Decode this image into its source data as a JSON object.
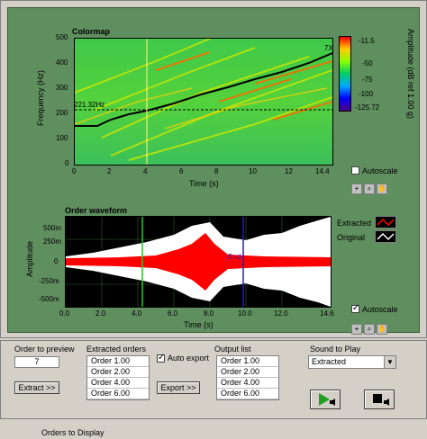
{
  "colormap": {
    "title": "Colormap",
    "ylabel": "Frequency (Hz)",
    "xlabel": "Time (s)",
    "y_ticks": [
      "500",
      "400",
      "300",
      "200",
      "100",
      "0"
    ],
    "x_ticks": [
      "0",
      "2",
      "4",
      "6",
      "8",
      "10",
      "12",
      "14.4"
    ],
    "marker_label": "221.32Hz",
    "order_label": "7X",
    "colorbar_label": "Amplitude (dB ref 1.00 g)",
    "colorbar_ticks": [
      "-11.5",
      "-50",
      "-75",
      "-100",
      "-125.72"
    ],
    "autoscale_label": "Autoscale",
    "autoscale_checked": false
  },
  "order_waveform": {
    "title": "Order waveform",
    "ylabel": "Amplitude",
    "xlabel": "Time (s)",
    "y_ticks": [
      "500m",
      "250m",
      "0",
      "-250m",
      "-500m"
    ],
    "x_ticks": [
      "0.0",
      "2.0",
      "4.0",
      "6.0",
      "8.0",
      "10.0",
      "12.0",
      "14.6"
    ],
    "legend": [
      {
        "name": "Extracted",
        "color": "#ff0000"
      },
      {
        "name": "Original",
        "color": "#ffffff"
      }
    ],
    "end_label": "End",
    "autoscale_label": "Autoscale",
    "autoscale_checked": true
  },
  "controls": {
    "order_to_preview_label": "Order to preview",
    "order_to_preview_value": "7",
    "extract_button": "Extract >>",
    "extracted_orders_label": "Extracted orders",
    "extracted_orders": [
      "Order 1.00",
      "Order 2.00",
      "Order 4.00",
      "Order 6.00"
    ],
    "auto_export_label": "Auto export",
    "auto_export_checked": true,
    "export_button": "Export >>",
    "output_list_label": "Output list",
    "output_list": [
      "Order 1.00",
      "Order 2.00",
      "Order 4.00",
      "Order 6.00"
    ],
    "sound_to_play_label": "Sound to Play",
    "sound_to_play_value": "Extracted",
    "orders_to_display_label": "Orders to Display"
  }
}
